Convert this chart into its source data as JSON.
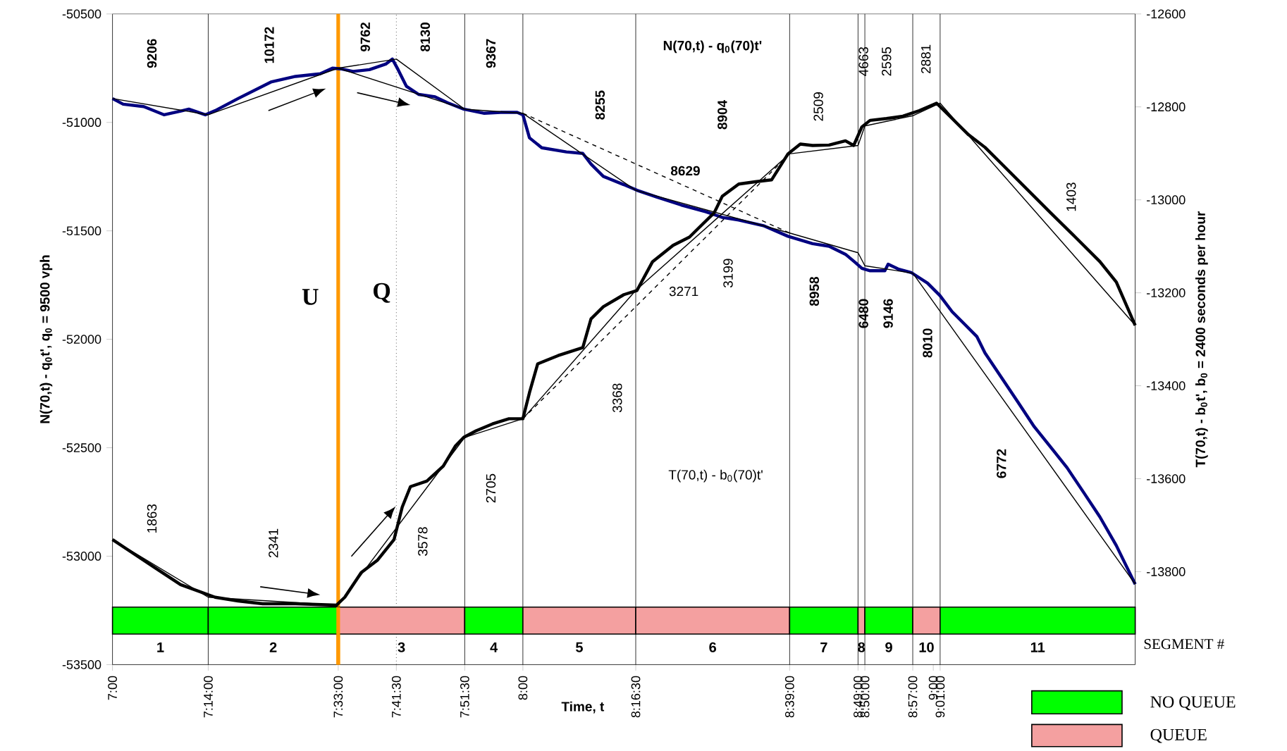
{
  "chart_data": {
    "type": "line",
    "xlabel": "Time, t",
    "ylabel": "N(70,t) - q$_{0}$t', q$_{0}$ = 9500 vph",
    "y2label": "T(70,t) - b$_{0}$t', b$_{0}$ = 2400 seconds per hour",
    "xlim": [
      7,
      9.492
    ],
    "xticks": [
      {
        "value": 7,
        "label": "7:00"
      },
      {
        "value": 7.2333,
        "label": "7:14:00"
      },
      {
        "value": 7.55,
        "label": "7:33:00"
      },
      {
        "value": 7.6917,
        "label": "7:41:30"
      },
      {
        "value": 7.8583,
        "label": "7:51:30"
      },
      {
        "value": 8,
        "label": "8:00"
      },
      {
        "value": 8.275,
        "label": "8:16:30"
      },
      {
        "value": 8.65,
        "label": "8:39:00"
      },
      {
        "value": 8.8167,
        "label": "8:49:00"
      },
      {
        "value": 8.8333,
        "label": "8:50:00"
      },
      {
        "value": 8.95,
        "label": "8:57:00"
      },
      {
        "value": 9,
        "label": "9:00"
      },
      {
        "value": 9.0167,
        "label": "9:01:00"
      }
    ],
    "ylim": [
      -53500,
      -50500
    ],
    "yticks": [
      -53500,
      -53000,
      -52500,
      -52000,
      -51500,
      -51000,
      -50500
    ],
    "y2lim": [
      -14000,
      -12600
    ],
    "y2ticks": [
      -13800,
      -13600,
      -13400,
      -13200,
      -13000,
      -12800,
      -12600
    ],
    "series": [
      {
        "color": "#000080",
        "x": [
          7,
          7.026,
          7.076,
          7.126,
          7.186,
          7.226,
          7.25,
          7.306,
          7.386,
          7.446,
          7.506,
          7.536,
          7.556,
          7.586,
          7.626,
          7.666,
          7.682,
          7.696,
          7.716,
          7.746,
          7.786,
          7.816,
          7.856,
          7.906,
          7.946,
          7.986,
          8,
          8.016,
          8.046,
          8.106,
          8.146,
          8.166,
          8.196,
          8.246,
          8.278,
          8.326,
          8.386,
          8.446,
          8.486,
          8.526,
          8.586,
          8.646,
          8.706,
          8.746,
          8.786,
          8.81,
          8.826,
          8.846,
          8.882,
          8.89,
          8.916,
          8.946,
          8.986,
          9.016,
          9.046,
          9.076,
          9.106,
          9.126,
          9.166,
          9.206,
          9.246,
          9.286,
          9.326,
          9.366,
          9.406,
          9.446,
          9.492
        ],
        "values": [
          -50890,
          -50916,
          -50927,
          -50965,
          -50939,
          -50965,
          -50946,
          -50890,
          -50814,
          -50788,
          -50776,
          -50750,
          -50753,
          -50765,
          -50757,
          -50731,
          -50708,
          -50757,
          -50833,
          -50871,
          -50882,
          -50909,
          -50939,
          -50958,
          -50954,
          -50954,
          -50965,
          -51071,
          -51117,
          -51136,
          -51143,
          -51192,
          -51249,
          -51287,
          -51313,
          -51344,
          -51381,
          -51412,
          -51438,
          -51450,
          -51476,
          -51525,
          -51559,
          -51571,
          -51608,
          -51646,
          -51673,
          -51684,
          -51684,
          -51654,
          -51677,
          -51692,
          -51741,
          -51798,
          -51873,
          -51930,
          -51987,
          -52063,
          -52176,
          -52289,
          -52403,
          -52497,
          -52592,
          -52705,
          -52819,
          -52951,
          -53129
        ]
      },
      {
        "color": "#000000",
        "x": [
          7,
          7.2333,
          7.55,
          7.6917,
          7.8583,
          8,
          8.275,
          8.65,
          8.8167,
          8.8333,
          8.95,
          9.492
        ],
        "values": [
          -50890,
          -50965,
          -50750,
          -50708,
          -50939,
          -50958,
          -51313,
          -51510,
          -51601,
          -51661,
          -51695,
          -53129
        ]
      },
      {
        "color": "#000000",
        "x": [
          7.55,
          7.8583
        ],
        "values": [
          -50750,
          -50939
        ]
      },
      {
        "color": "#000000",
        "line_style": "dashed",
        "x": [
          8,
          8.65
        ],
        "values": [
          -50958,
          -51510
        ]
      },
      {
        "axis": "y2",
        "color": "#000000",
        "x": [
          7,
          7.046,
          7.106,
          7.166,
          7.25,
          7.306,
          7.366,
          7.446,
          7.546,
          7.566,
          7.606,
          7.646,
          7.686,
          7.706,
          7.726,
          7.766,
          7.806,
          7.836,
          7.856,
          7.886,
          7.926,
          7.966,
          8,
          8.016,
          8.036,
          8.086,
          8.146,
          8.166,
          8.196,
          8.246,
          8.278,
          8.316,
          8.366,
          8.406,
          8.436,
          8.466,
          8.486,
          8.526,
          8.566,
          8.606,
          8.646,
          8.676,
          8.706,
          8.746,
          8.786,
          8.806,
          8.826,
          8.846,
          8.886,
          8.926,
          8.966,
          9.008,
          9.046,
          9.086,
          9.126,
          9.166,
          9.226,
          9.286,
          9.346,
          9.406,
          9.446,
          9.492
        ],
        "values": [
          -13731,
          -13758,
          -13793,
          -13828,
          -13855,
          -13863,
          -13869,
          -13869,
          -13872,
          -13855,
          -13802,
          -13775,
          -13731,
          -13661,
          -13617,
          -13605,
          -13573,
          -13529,
          -13511,
          -13497,
          -13482,
          -13471,
          -13471,
          -13415,
          -13353,
          -13335,
          -13318,
          -13256,
          -13230,
          -13204,
          -13195,
          -13133,
          -13098,
          -13080,
          -13054,
          -13028,
          -12992,
          -12966,
          -12961,
          -12957,
          -12901,
          -12880,
          -12883,
          -12882,
          -12873,
          -12883,
          -12843,
          -12829,
          -12825,
          -12820,
          -12808,
          -12792,
          -12825,
          -12860,
          -12887,
          -12922,
          -12975,
          -13028,
          -13080,
          -13133,
          -13177,
          -13270
        ]
      },
      {
        "axis": "y2",
        "color": "#000000",
        "x": [
          7,
          7.2333,
          7.55,
          7.8583,
          8,
          8.275,
          8.65,
          8.8167,
          8.8333,
          8.95,
          9.0167,
          9.492
        ],
        "values": [
          -13731,
          -13855,
          -13872,
          -13511,
          -13471,
          -13195,
          -12901,
          -12883,
          -12841,
          -12819,
          -12792,
          -13270
        ]
      },
      {
        "axis": "y2",
        "color": "#000000",
        "line_style": "dashed",
        "x": [
          8,
          8.65
        ],
        "values": [
          -13471,
          -12901
        ]
      }
    ],
    "ref_lines": [
      {
        "axis": "x",
        "value": 7.2333,
        "color": "#000000"
      },
      {
        "axis": "x",
        "value": 7.6917,
        "color": "#000000",
        "line_style": "dotted"
      },
      {
        "axis": "x",
        "value": 7.8583,
        "color": "#000000"
      },
      {
        "axis": "x",
        "value": 8,
        "color": "#000000"
      },
      {
        "axis": "x",
        "value": 8.275,
        "color": "#000000"
      },
      {
        "axis": "x",
        "value": 8.65,
        "color": "#000000"
      },
      {
        "axis": "x",
        "value": 8.8167,
        "color": "#000000"
      },
      {
        "axis": "x",
        "value": 8.8333,
        "color": "#000000"
      },
      {
        "axis": "x",
        "value": 8.95,
        "color": "#000000"
      },
      {
        "axis": "x",
        "value": 9.0167,
        "color": "#000000"
      },
      {
        "axis": "x",
        "value": 7.55,
        "color": "#ff9900"
      }
    ],
    "bands": [
      {
        "axis": "x",
        "from": 7,
        "to": 7.2333,
        "label": "1",
        "color": "#00ff00"
      },
      {
        "axis": "x",
        "from": 7.2333,
        "to": 7.55,
        "label": "2",
        "color": "#00ff00"
      },
      {
        "axis": "x",
        "from": 7.55,
        "to": 7.8583,
        "label": "3",
        "color": "#f4a0a0"
      },
      {
        "axis": "x",
        "from": 7.8583,
        "to": 8,
        "label": "4",
        "color": "#00ff00"
      },
      {
        "axis": "x",
        "from": 8,
        "to": 8.275,
        "label": "5",
        "color": "#f4a0a0"
      },
      {
        "axis": "x",
        "from": 8.275,
        "to": 8.65,
        "label": "6",
        "color": "#f4a0a0"
      },
      {
        "axis": "x",
        "from": 8.65,
        "to": 8.8167,
        "label": "7",
        "color": "#00ff00"
      },
      {
        "axis": "x",
        "from": 8.8167,
        "to": 8.8333,
        "label": "8",
        "color": "#f4a0a0"
      },
      {
        "axis": "x",
        "from": 8.8333,
        "to": 8.95,
        "label": "9",
        "color": "#00ff00"
      },
      {
        "axis": "x",
        "from": 8.95,
        "to": 9.0167,
        "label": "10",
        "color": "#f4a0a0"
      },
      {
        "axis": "x",
        "from": 9.0167,
        "to": 9.492,
        "label": "11",
        "color": "#00ff00"
      }
    ],
    "annotations": [
      "9206",
      "10172",
      "9762",
      "8130",
      "9367",
      "8255",
      "8904",
      "2509",
      "4663",
      "2595",
      "2881",
      "1403",
      "3199",
      "8958",
      "6480",
      "9146",
      "8010",
      "3368",
      "6772",
      "2705",
      "1863",
      "3578",
      "2341",
      "8629",
      "3271",
      "U",
      "Q",
      "SEGMENT #",
      "NO QUEUE",
      "QUEUE",
      "N(70,t) - q$_{0}$(70)t'",
      "T(70,t) - b$_{0}$(70)t'"
    ]
  }
}
